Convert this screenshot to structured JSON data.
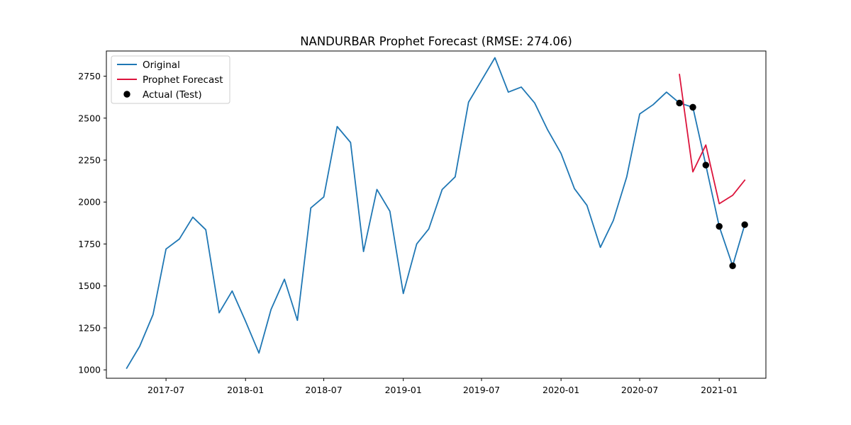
{
  "chart_data": {
    "type": "line",
    "title": "NANDURBAR Prophet Forecast (RMSE: 274.06)",
    "xlabel": "",
    "ylabel": "",
    "x_ticks": [
      "2017-07",
      "2018-01",
      "2018-07",
      "2019-01",
      "2019-07",
      "2020-01",
      "2020-07",
      "2021-01"
    ],
    "y_ticks": [
      1000,
      1250,
      1500,
      1750,
      2000,
      2250,
      2500,
      2750
    ],
    "xlim": [
      "2017-02-13",
      "2021-04-19"
    ],
    "ylim": [
      950,
      2900
    ],
    "legend_position": "top-left",
    "grid": false,
    "series": [
      {
        "name": "Original",
        "kind": "line",
        "color": "#1f77b4",
        "x": [
          "2017-04",
          "2017-05",
          "2017-06",
          "2017-07",
          "2017-08",
          "2017-09",
          "2017-10",
          "2017-11",
          "2017-12",
          "2018-01",
          "2018-02",
          "2018-03",
          "2018-04",
          "2018-05",
          "2018-06",
          "2018-07",
          "2018-08",
          "2018-09",
          "2018-10",
          "2018-11",
          "2018-12",
          "2019-01",
          "2019-02",
          "2019-03",
          "2019-04",
          "2019-05",
          "2019-06",
          "2019-07",
          "2019-08",
          "2019-09",
          "2019-10",
          "2019-11",
          "2019-12",
          "2020-01",
          "2020-02",
          "2020-03",
          "2020-04",
          "2020-05",
          "2020-06",
          "2020-07",
          "2020-08",
          "2020-09",
          "2020-10",
          "2020-11",
          "2020-12",
          "2021-01",
          "2021-02",
          "2021-03"
        ],
        "y": [
          1010,
          1140,
          1330,
          1720,
          1780,
          1910,
          1835,
          1340,
          1470,
          1290,
          1100,
          1360,
          1540,
          1295,
          1965,
          2030,
          2450,
          2355,
          1705,
          2075,
          1945,
          1455,
          1750,
          1840,
          2075,
          2150,
          2595,
          2725,
          2860,
          2655,
          2685,
          2590,
          2430,
          2290,
          2080,
          1980,
          1730,
          1890,
          2150,
          2525,
          2580,
          2655,
          2590,
          2565,
          2220,
          1855,
          1620,
          1865
        ]
      },
      {
        "name": "Prophet Forecast",
        "kind": "line",
        "color": "#dc143c",
        "x": [
          "2020-10",
          "2020-11",
          "2020-12",
          "2021-01",
          "2021-02",
          "2021-03"
        ],
        "y": [
          2760,
          2180,
          2340,
          1990,
          2040,
          2130
        ]
      },
      {
        "name": "Actual (Test)",
        "kind": "scatter",
        "color": "#000000",
        "x": [
          "2020-10",
          "2020-11",
          "2020-12",
          "2021-01",
          "2021-02",
          "2021-03"
        ],
        "y": [
          2590,
          2565,
          2220,
          1855,
          1620,
          1865
        ]
      }
    ]
  }
}
